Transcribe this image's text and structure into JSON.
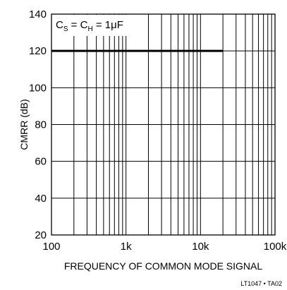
{
  "chart_data": {
    "type": "line",
    "title": "",
    "xlabel": "FREQUENCY OF COMMON MODE SIGNAL",
    "ylabel": "CMRR (dB)",
    "x_scale": "log",
    "xlim": [
      100,
      100000
    ],
    "ylim": [
      20,
      140
    ],
    "x_ticks": [
      100,
      1000,
      10000,
      100000
    ],
    "x_tick_labels": [
      "100",
      "1k",
      "10k",
      "100k"
    ],
    "y_ticks": [
      20,
      40,
      60,
      80,
      100,
      120,
      140
    ],
    "y_tick_labels": [
      "20",
      "40",
      "60",
      "80",
      "100",
      "120",
      "140"
    ],
    "grid": true,
    "series": [
      {
        "x": [
          100,
          20000
        ],
        "y": [
          120,
          120
        ]
      }
    ],
    "annotation": {
      "c_main": "C",
      "c_sub_s": "S",
      "equals_1": " = C",
      "c_sub_h": "H",
      "equals_2": " = 1μF"
    },
    "figure_id": "LT1047 • TA02"
  }
}
